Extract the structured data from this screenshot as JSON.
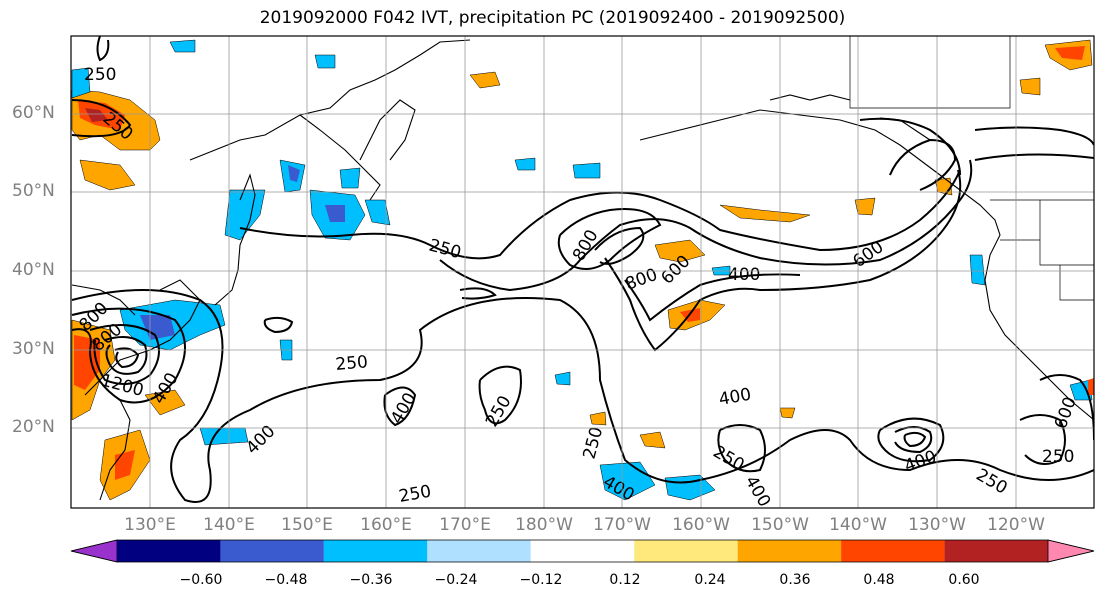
{
  "title": "2019092000 F042 IVT, precipitation PC (2019092400 - 2019092500)",
  "lat_labels": [
    "60°N",
    "50°N",
    "40°N",
    "30°N",
    "20°N"
  ],
  "lon_labels": [
    "130°E",
    "140°E",
    "150°E",
    "160°E",
    "170°E",
    "180°W",
    "170°W",
    "160°W",
    "150°W",
    "140°W",
    "130°W",
    "120°W"
  ],
  "contour_labels": [
    "250",
    "250",
    "250",
    "800",
    "800",
    "800",
    "1200",
    "400",
    "250",
    "400",
    "250",
    "800",
    "600",
    "400",
    "600",
    "400",
    "250",
    "400",
    "400",
    "250",
    "400",
    "250",
    "250",
    "400",
    "600",
    "250"
  ],
  "colorbar": {
    "colors": [
      "#9932cc",
      "#000080",
      "#3a5bd0",
      "#00bfff",
      "#b0e0ff",
      "#ffffff",
      "#ffe87c",
      "#ffa500",
      "#ff4500",
      "#b22222",
      "#ff88b0"
    ],
    "tick_labels": [
      "−0.60",
      "−0.48",
      "−0.36",
      "−0.24",
      "−0.12",
      "0.12",
      "0.24",
      "0.36",
      "0.48",
      "0.60"
    ]
  }
}
